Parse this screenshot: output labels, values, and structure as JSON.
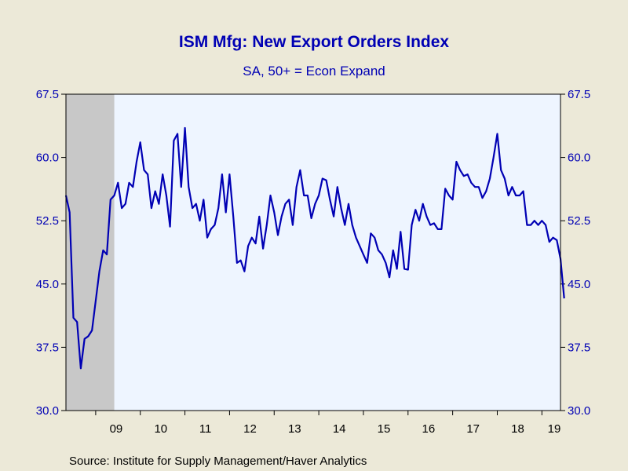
{
  "chart_data": {
    "type": "line",
    "title": "ISM Mfg: New Export Orders Index",
    "subtitle": "SA, 50+ = Econ Expand",
    "source": "Source:  Institute for Supply Management/Haver Analytics",
    "ylim": [
      30.0,
      67.5
    ],
    "yticks": [
      "30.0",
      "37.5",
      "45.0",
      "52.5",
      "60.0",
      "67.5"
    ],
    "xlim": [
      "2008-05",
      "2019-06"
    ],
    "year_labels": [
      "09",
      "10",
      "11",
      "12",
      "13",
      "14",
      "15",
      "16",
      "17",
      "18",
      "19"
    ],
    "recession": {
      "start": "2008-05",
      "end": "2009-06"
    },
    "grid": false,
    "colors": {
      "line": "#0000b4",
      "plot_bg": "#eef5ff",
      "recession": "#c8c8c8",
      "page_bg": "#ece9d8"
    },
    "series": [
      {
        "start": "2008-05",
        "values": [
          55.5,
          53.5,
          41.0,
          40.5,
          35.0,
          38.5,
          38.8,
          39.5,
          43.0,
          46.5,
          49.0,
          48.5,
          55.0,
          55.5,
          57.0,
          54.0,
          54.5,
          57.0,
          56.5,
          59.5,
          61.8,
          58.5,
          58.0,
          54.0,
          56.0,
          54.5,
          58.0,
          55.5,
          51.8,
          62.0,
          62.8,
          56.5,
          63.5,
          56.5,
          54.0,
          54.5,
          52.5,
          55.0,
          50.5,
          51.5,
          52.0,
          54.0,
          58.0,
          53.5,
          58.0,
          53.0,
          47.5,
          47.8,
          46.5,
          49.5,
          50.5,
          49.8,
          53.0,
          49.2,
          52.0,
          55.5,
          53.5,
          50.8,
          53.0,
          54.5,
          55.0,
          52.0,
          56.5,
          58.5,
          55.5,
          55.5,
          52.8,
          54.5,
          55.5,
          57.5,
          57.3,
          55.0,
          53.0,
          56.5,
          54.0,
          52.0,
          54.5,
          52.0,
          50.5,
          49.5,
          48.5,
          47.5,
          51.0,
          50.5,
          49.0,
          48.5,
          47.5,
          45.8,
          49.0,
          46.8,
          51.2,
          46.8,
          46.7,
          52.0,
          53.8,
          52.5,
          54.5,
          53.0,
          52.0,
          52.2,
          51.5,
          51.5,
          56.3,
          55.5,
          55.0,
          59.5,
          58.5,
          57.8,
          58.0,
          57.0,
          56.5,
          56.5,
          55.2,
          56.0,
          57.5,
          60.0,
          62.8,
          58.5,
          57.5,
          55.5,
          56.5,
          55.5,
          55.5,
          56.0,
          52.0,
          52.0,
          52.5,
          52.0,
          52.5,
          52.0,
          50.0,
          50.5,
          50.2,
          48.0,
          43.3
        ]
      }
    ]
  }
}
